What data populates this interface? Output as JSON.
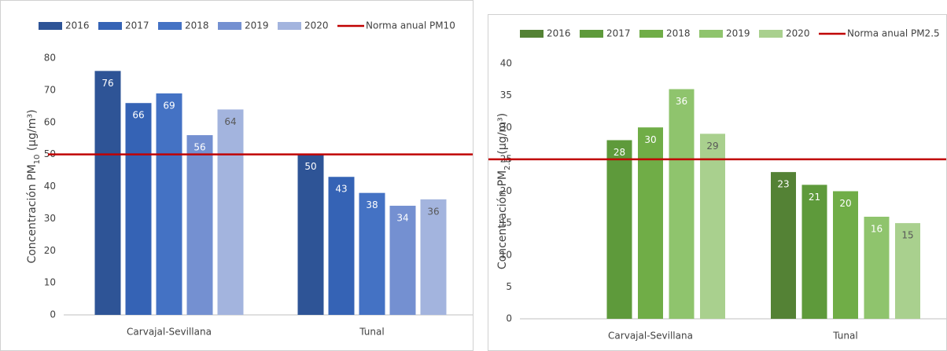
{
  "chart_data": [
    {
      "type": "bar",
      "ylabel_main": "Concentración PM",
      "ylabel_sub": "10",
      "ylabel_unit": " (µg/m³)",
      "categories": [
        "Carvajal-Sevillana",
        "Tunal"
      ],
      "series": [
        {
          "name": "2016",
          "color": "#2e5496",
          "values": [
            76,
            50
          ]
        },
        {
          "name": "2017",
          "color": "#3563b5",
          "values": [
            66,
            43
          ]
        },
        {
          "name": "2018",
          "color": "#4472c4",
          "values": [
            69,
            38
          ]
        },
        {
          "name": "2019",
          "color": "#7490d1",
          "values": [
            56,
            34
          ]
        },
        {
          "name": "2020",
          "color": "#a3b4de",
          "values": [
            64,
            36
          ]
        }
      ],
      "reference_line": {
        "name": "Norma anual PM10",
        "value": 50,
        "color": "#c00000"
      },
      "ylim": [
        0,
        80
      ],
      "yticks": [
        0,
        10,
        20,
        30,
        40,
        50,
        60,
        70,
        80
      ]
    },
    {
      "type": "bar",
      "ylabel_main": "Concentración PM",
      "ylabel_sub": "2.5",
      "ylabel_unit": " (µg/m³)",
      "categories": [
        "Carvajal-Sevillana",
        "Tunal"
      ],
      "series": [
        {
          "name": "2016",
          "color": "#548235",
          "values": [
            null,
            23
          ]
        },
        {
          "name": "2017",
          "color": "#5e9a3b",
          "values": [
            28,
            21
          ]
        },
        {
          "name": "2018",
          "color": "#70ad47",
          "values": [
            30,
            20
          ]
        },
        {
          "name": "2019",
          "color": "#8fc46d",
          "values": [
            36,
            16
          ]
        },
        {
          "name": "2020",
          "color": "#a9d08e",
          "values": [
            29,
            15
          ]
        }
      ],
      "reference_line": {
        "name": "Norma anual PM2.5",
        "value": 25,
        "color": "#c00000"
      },
      "ylim": [
        0,
        40
      ],
      "yticks": [
        0,
        5,
        10,
        15,
        20,
        25,
        30,
        35,
        40
      ]
    }
  ]
}
